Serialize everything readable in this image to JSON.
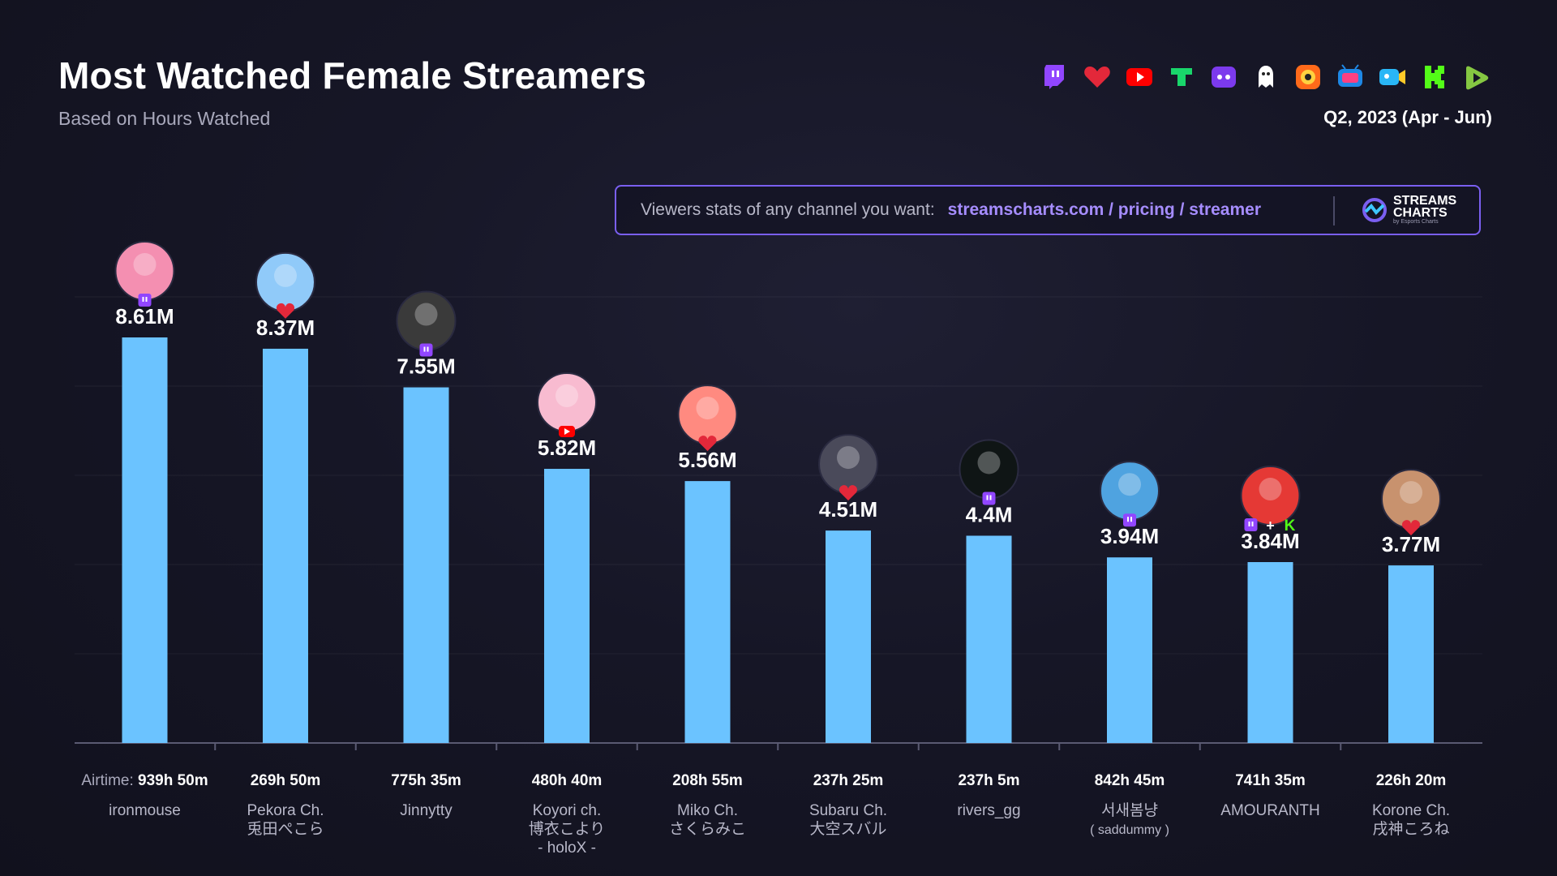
{
  "header": {
    "title": "Most Watched Female Streamers",
    "subtitle": "Based on Hours Watched",
    "period": "Q2, 2023 (Apr - Jun)"
  },
  "platform_icons": [
    "twitch-icon",
    "heart-platform-icon",
    "youtube-icon",
    "trovo-icon",
    "kick-purple-icon",
    "ghost-platform-icon",
    "camera-platform-icon",
    "tv-platform-icon",
    "video-camera-icon",
    "kick-icon",
    "rumble-icon"
  ],
  "promo": {
    "text": "Viewers stats of any channel you want:",
    "url": "streamscharts.com / pricing / streamer",
    "brand_line1": "STREAMS",
    "brand_line2": "CHARTS",
    "brand_line3": "by Esports Charts"
  },
  "colors": {
    "bar": "#6bc3ff",
    "accent": "#a68dff",
    "background": "#161626",
    "twitch": "#9146ff",
    "youtube": "#ff0000",
    "heart": "#e3283a",
    "kick": "#53fc18"
  },
  "airtime_prefix": "Airtime:",
  "chart_data": {
    "type": "bar",
    "title": "Most Watched Female Streamers",
    "subtitle": "Based on Hours Watched",
    "unit": "M",
    "ylim": [
      0,
      10
    ],
    "categories": [
      "ironmouse",
      "Pekora Ch. 兎田ぺこら",
      "Jinnytty",
      "Koyori ch. 博衣こより - holoX -",
      "Miko Ch. さくらみこ",
      "Subaru Ch. 大空スバル",
      "rivers_gg",
      "서새봄냥 ( saddummy )",
      "AMOURANTH",
      "Korone Ch. 戌神ころね"
    ],
    "values": [
      8.61,
      8.37,
      7.55,
      5.82,
      5.56,
      4.51,
      4.4,
      3.94,
      3.84,
      3.77
    ],
    "value_labels": [
      "8.61M",
      "8.37M",
      "7.55M",
      "5.82M",
      "5.56M",
      "4.51M",
      "4.4M",
      "3.94M",
      "3.84M",
      "3.77M"
    ],
    "name_lines": [
      [
        "ironmouse"
      ],
      [
        "Pekora Ch.",
        "兎田ぺこら"
      ],
      [
        "Jinnytty"
      ],
      [
        "Koyori ch.",
        "博衣こより",
        "- holoX -"
      ],
      [
        "Miko Ch.",
        "さくらみこ"
      ],
      [
        "Subaru Ch.",
        "大空スバル"
      ],
      [
        "rivers_gg"
      ],
      [
        "서새봄냥",
        "( saddummy )"
      ],
      [
        "AMOURANTH"
      ],
      [
        "Korone Ch.",
        "戌神ころね"
      ]
    ],
    "airtime": [
      "939h 50m",
      "269h 50m",
      "775h 35m",
      "480h 40m",
      "208h 55m",
      "237h 25m",
      "237h 5m",
      "842h 45m",
      "741h 35m",
      "226h 20m"
    ],
    "platforms": [
      [
        "twitch"
      ],
      [
        "heart"
      ],
      [
        "twitch"
      ],
      [
        "youtube"
      ],
      [
        "heart"
      ],
      [
        "heart"
      ],
      [
        "twitch"
      ],
      [
        "twitch"
      ],
      [
        "twitch",
        "kick"
      ],
      [
        "heart"
      ]
    ],
    "avatar_colors": [
      "#f48fb1",
      "#90caf9",
      "#3a3a3a",
      "#f8bbd0",
      "#ff8a80",
      "#4a4a5a",
      "#0f1515",
      "#4fa3e0",
      "#e53935",
      "#c8926e"
    ],
    "grid": true
  }
}
